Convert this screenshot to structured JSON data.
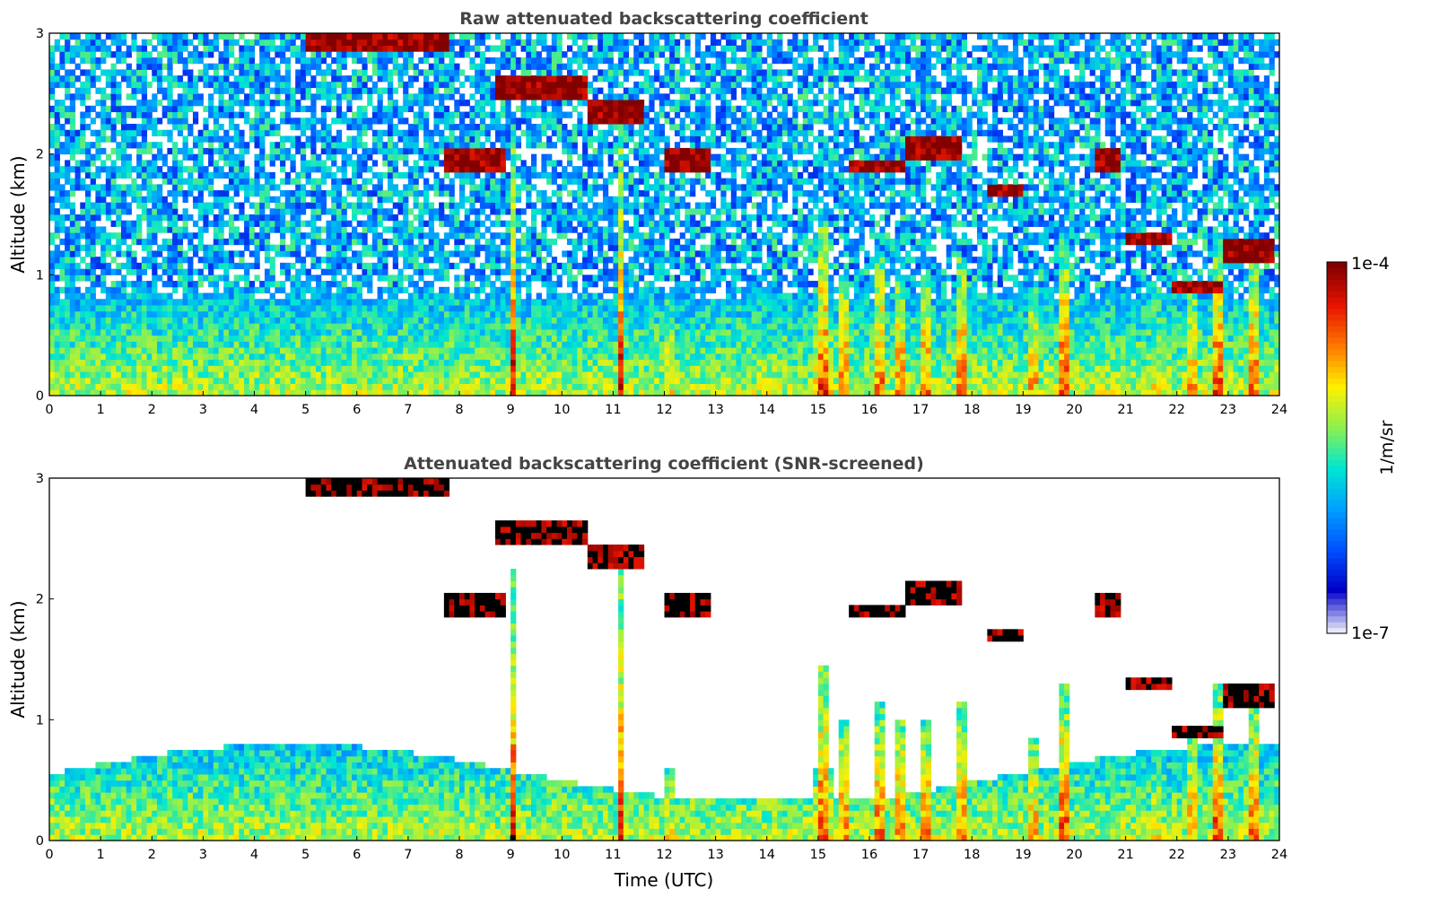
{
  "chart_data": [
    {
      "type": "heatmap",
      "title": "Raw attenuated backscattering coefficient",
      "xlabel": "",
      "ylabel": "Altitude (km)",
      "xlim": [
        0,
        24
      ],
      "ylim": [
        0,
        3
      ],
      "xticks": [
        "0",
        "1",
        "2",
        "3",
        "4",
        "5",
        "6",
        "7",
        "8",
        "9",
        "10",
        "11",
        "12",
        "13",
        "14",
        "15",
        "16",
        "17",
        "18",
        "19",
        "20",
        "21",
        "22",
        "23",
        "24"
      ],
      "yticks": [
        "0",
        "1",
        "2",
        "3"
      ],
      "screened": false
    },
    {
      "type": "heatmap",
      "title": "Attenuated backscattering coefficient (SNR-screened)",
      "xlabel": "Time (UTC)",
      "ylabel": "Altitude (km)",
      "xlim": [
        0,
        24
      ],
      "ylim": [
        0,
        3
      ],
      "xticks": [
        "0",
        "1",
        "2",
        "3",
        "4",
        "5",
        "6",
        "7",
        "8",
        "9",
        "10",
        "11",
        "12",
        "13",
        "14",
        "15",
        "16",
        "17",
        "18",
        "19",
        "20",
        "21",
        "22",
        "23",
        "24"
      ],
      "yticks": [
        "0",
        "1",
        "2",
        "3"
      ],
      "screened": true
    }
  ],
  "colorbar": {
    "label": "1/m/sr",
    "max_label": "1e-4",
    "min_label": "1e-7",
    "scale": "log",
    "colormap": "jet",
    "colors": [
      "#e6e6f7",
      "#0000c8",
      "#0050ff",
      "#00a0ff",
      "#00e6d2",
      "#8cf050",
      "#fff000",
      "#ff7800",
      "#e61400",
      "#820000"
    ]
  }
}
